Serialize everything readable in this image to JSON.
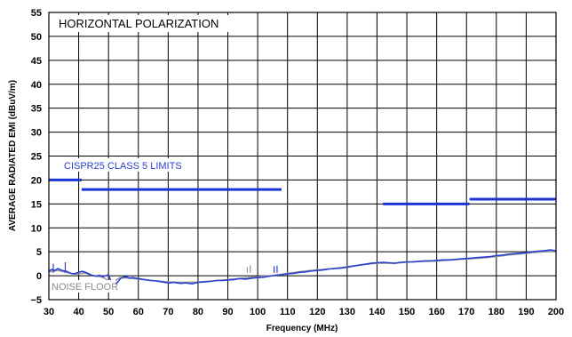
{
  "chart_data": {
    "type": "line",
    "title": "HORIZONTAL POLARIZATION",
    "xlabel": "Frequency (MHz)",
    "ylabel": "AVERAGE RADIATED EMI (dBuV/m)",
    "xlim": [
      30,
      200
    ],
    "ylim": [
      -5,
      55
    ],
    "x_ticks": [
      30,
      40,
      50,
      60,
      70,
      80,
      90,
      100,
      110,
      120,
      130,
      140,
      150,
      160,
      170,
      180,
      190,
      200
    ],
    "y_ticks": [
      -5,
      0,
      5,
      10,
      15,
      20,
      25,
      30,
      35,
      40,
      45,
      50,
      55
    ],
    "grid": true,
    "annotations": {
      "limits_label": "CISPR25 CLASS 5 LIMITS",
      "noise_label": "NOISE FLOOR"
    },
    "limits": [
      {
        "x": [
          30,
          41
        ],
        "y": 20
      },
      {
        "x": [
          41,
          108
        ],
        "y": 18
      },
      {
        "x": [
          142,
          171
        ],
        "y": 15
      },
      {
        "x": [
          171,
          200
        ],
        "y": 16
      }
    ],
    "series": [
      {
        "color": "#2a3fd0",
        "x": [
          30,
          31,
          32,
          33,
          34,
          35,
          36,
          37,
          38,
          39,
          40,
          41,
          42,
          43,
          44,
          45,
          46,
          47,
          48,
          49,
          50,
          51,
          52,
          53,
          54,
          55,
          56,
          57,
          58,
          60,
          62,
          64,
          66,
          68,
          70,
          72,
          74,
          76,
          78,
          80,
          82,
          84,
          86,
          88,
          90,
          92,
          94,
          96,
          98,
          100,
          102,
          104,
          106,
          108,
          110,
          112,
          114,
          116,
          118,
          120,
          122,
          124,
          126,
          128,
          130,
          132,
          134,
          136,
          138,
          140,
          142,
          144,
          146,
          148,
          150,
          152,
          154,
          156,
          158,
          160,
          162,
          164,
          166,
          168,
          170,
          172,
          174,
          176,
          178,
          180,
          182,
          184,
          186,
          188,
          190,
          192,
          194,
          196,
          198,
          200
        ],
        "y": [
          1.0,
          1.3,
          1.1,
          1.5,
          1.2,
          1.0,
          0.9,
          0.6,
          0.4,
          0.5,
          0.7,
          0.9,
          0.8,
          0.5,
          0.2,
          0.0,
          -0.1,
          0.1,
          -0.2,
          0.0,
          0.2,
          -1.5,
          -1.8,
          -1.4,
          -0.6,
          -0.3,
          -0.2,
          -0.5,
          -0.4,
          -0.6,
          -0.8,
          -1.0,
          -1.1,
          -1.3,
          -1.5,
          -1.4,
          -1.6,
          -1.5,
          -1.7,
          -1.4,
          -1.3,
          -1.2,
          -1.0,
          -1.0,
          -0.9,
          -0.8,
          -0.6,
          -0.7,
          -0.5,
          -0.4,
          -0.3,
          -0.1,
          0.1,
          0.2,
          0.4,
          0.5,
          0.7,
          0.8,
          1.0,
          1.1,
          1.2,
          1.4,
          1.5,
          1.6,
          1.8,
          2.0,
          2.2,
          2.4,
          2.6,
          2.7,
          2.8,
          2.7,
          2.6,
          2.8,
          2.9,
          2.9,
          3.0,
          3.1,
          3.1,
          3.2,
          3.3,
          3.3,
          3.4,
          3.5,
          3.6,
          3.7,
          3.8,
          3.9,
          4.0,
          4.2,
          4.3,
          4.5,
          4.6,
          4.7,
          4.8,
          5.0,
          5.1,
          5.2,
          5.4,
          5.2
        ]
      },
      {
        "color": "#9a9a9a",
        "x": [
          30,
          33,
          36,
          39,
          42,
          45,
          48,
          51,
          54,
          57,
          60,
          65,
          70,
          75,
          80,
          85,
          90,
          95,
          100,
          105,
          110,
          115,
          120,
          125,
          130,
          135,
          140,
          145,
          150,
          155,
          160,
          165,
          170,
          175,
          180,
          185,
          190,
          195,
          200
        ],
        "y": [
          0.8,
          1.1,
          0.7,
          0.3,
          0.6,
          0.0,
          -0.3,
          -1.4,
          -0.4,
          -0.5,
          -0.7,
          -1.0,
          -1.3,
          -1.4,
          -1.3,
          -1.1,
          -0.8,
          -0.5,
          -0.2,
          0.0,
          0.5,
          0.9,
          1.2,
          1.5,
          1.9,
          2.3,
          2.6,
          2.6,
          2.8,
          3.0,
          3.1,
          3.3,
          3.5,
          3.7,
          4.0,
          4.4,
          4.7,
          5.0,
          5.1
        ]
      }
    ],
    "spikes": [
      {
        "x": 31.5,
        "y": 2.5,
        "color": "#2a3fd0"
      },
      {
        "x": 35.5,
        "y": 2.8,
        "color": "#2a3fd0"
      },
      {
        "x": 96.5,
        "y": 1.8,
        "color": "#9a9a9a"
      },
      {
        "x": 97.5,
        "y": 2.2,
        "color": "#9a9a9a"
      },
      {
        "x": 105.5,
        "y": 2.0,
        "color": "#2a3fd0"
      },
      {
        "x": 106.5,
        "y": 2.1,
        "color": "#2a3fd0"
      }
    ]
  }
}
